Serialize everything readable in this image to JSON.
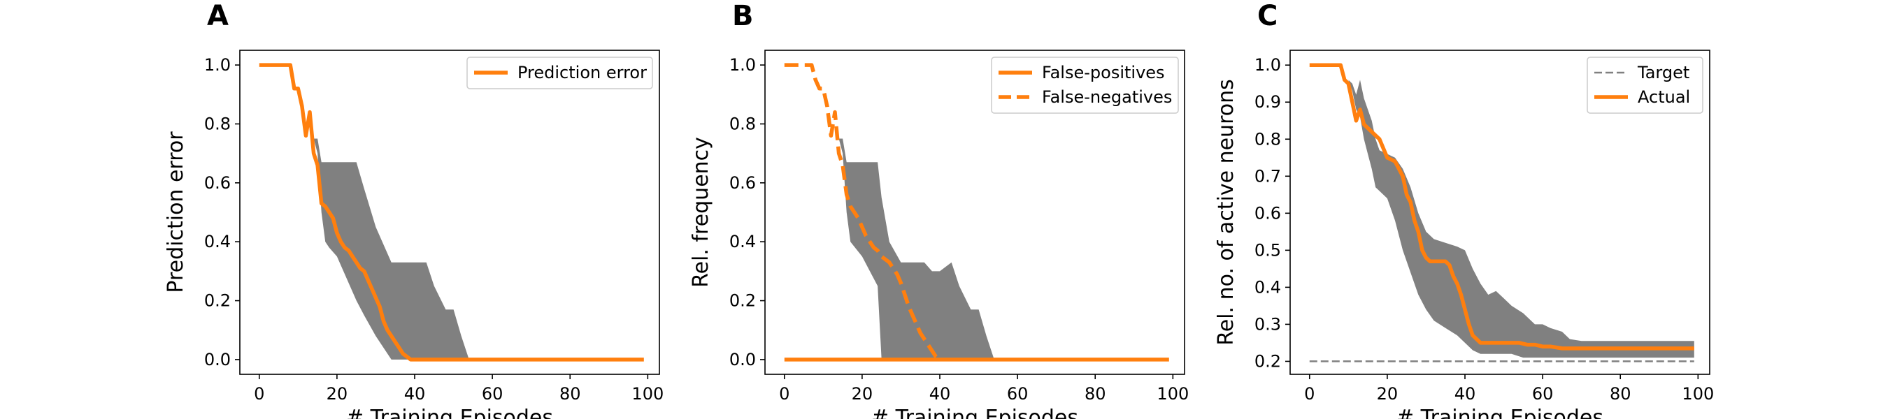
{
  "colors": {
    "orange": "#ff7f0e",
    "band": "#808080",
    "target": "#808080"
  },
  "chart_data": [
    {
      "type": "line",
      "panel_label": "A",
      "xlabel": "# Training Episodes",
      "ylabel": "Prediction error",
      "xlim": [
        -5,
        103
      ],
      "ylim": [
        -0.05,
        1.05
      ],
      "xticks": [
        0,
        20,
        40,
        60,
        80,
        100
      ],
      "yticks": [
        0.0,
        0.2,
        0.4,
        0.6,
        0.8,
        1.0
      ],
      "ytick_labels": [
        "0.0",
        "0.2",
        "0.4",
        "0.6",
        "0.8",
        "1.0"
      ],
      "legend_position": "top-right",
      "band": {
        "x": [
          14,
          15,
          16,
          17,
          18,
          20,
          25,
          27,
          30,
          34,
          35,
          40,
          43,
          45,
          48,
          50,
          52,
          54
        ],
        "upper": [
          0.75,
          0.75,
          0.67,
          0.67,
          0.67,
          0.67,
          0.67,
          0.58,
          0.45,
          0.33,
          0.33,
          0.33,
          0.33,
          0.25,
          0.17,
          0.17,
          0.08,
          0.0
        ],
        "lower": [
          0.75,
          0.7,
          0.5,
          0.4,
          0.38,
          0.35,
          0.2,
          0.15,
          0.08,
          0.0,
          0.0,
          0.0,
          0.0,
          0.0,
          0.0,
          0.0,
          0.0,
          0.0
        ]
      },
      "series": [
        {
          "name": "Prediction error",
          "style": "solid",
          "x": [
            0,
            8,
            9,
            10,
            11,
            12,
            13,
            14,
            15,
            16,
            17,
            18,
            19,
            20,
            21,
            22,
            23,
            24,
            25,
            26,
            27,
            28,
            29,
            30,
            31,
            32,
            33,
            34,
            35,
            36,
            37,
            38,
            39,
            40,
            99
          ],
          "y": [
            1.0,
            1.0,
            0.92,
            0.92,
            0.86,
            0.76,
            0.84,
            0.7,
            0.66,
            0.53,
            0.52,
            0.5,
            0.48,
            0.43,
            0.4,
            0.38,
            0.37,
            0.35,
            0.33,
            0.31,
            0.3,
            0.27,
            0.24,
            0.21,
            0.18,
            0.13,
            0.1,
            0.08,
            0.06,
            0.04,
            0.02,
            0.01,
            0.0,
            0.0,
            0.0
          ]
        }
      ]
    },
    {
      "type": "line",
      "panel_label": "B",
      "xlabel": "# Training Episodes",
      "ylabel": "Rel. frequency",
      "xlim": [
        -5,
        103
      ],
      "ylim": [
        -0.05,
        1.05
      ],
      "xticks": [
        0,
        20,
        40,
        60,
        80,
        100
      ],
      "yticks": [
        0.0,
        0.2,
        0.4,
        0.6,
        0.8,
        1.0
      ],
      "ytick_labels": [
        "0.0",
        "0.2",
        "0.4",
        "0.6",
        "0.8",
        "1.0"
      ],
      "legend_position": "top-right",
      "band": {
        "x": [
          14,
          15,
          16,
          17,
          20,
          24,
          25,
          27,
          30,
          34,
          36,
          38,
          40,
          43,
          45,
          48,
          50,
          52,
          54
        ],
        "upper": [
          0.75,
          0.75,
          0.67,
          0.67,
          0.67,
          0.67,
          0.55,
          0.4,
          0.33,
          0.33,
          0.33,
          0.3,
          0.3,
          0.33,
          0.25,
          0.17,
          0.17,
          0.08,
          0.0
        ],
        "lower": [
          0.75,
          0.7,
          0.5,
          0.4,
          0.35,
          0.25,
          0.0,
          0.0,
          0.0,
          0.0,
          0.0,
          0.0,
          0.0,
          0.0,
          0.0,
          0.0,
          0.0,
          0.0,
          0.0
        ]
      },
      "series": [
        {
          "name": "False-positives",
          "style": "solid",
          "x": [
            0,
            99
          ],
          "y": [
            0.0,
            0.0
          ]
        },
        {
          "name": "False-negatives",
          "style": "dashed",
          "x": [
            0,
            7,
            8,
            9,
            10,
            11,
            12,
            13,
            14,
            15,
            16,
            17,
            18,
            19,
            20,
            21,
            22,
            23,
            24,
            25,
            26,
            27,
            28,
            29,
            30,
            31,
            32,
            33,
            34,
            35,
            36,
            37,
            38,
            39,
            40
          ],
          "y": [
            1.0,
            1.0,
            0.95,
            0.92,
            0.92,
            0.86,
            0.76,
            0.84,
            0.7,
            0.66,
            0.56,
            0.52,
            0.5,
            0.48,
            0.45,
            0.42,
            0.4,
            0.38,
            0.37,
            0.35,
            0.34,
            0.33,
            0.31,
            0.29,
            0.26,
            0.22,
            0.18,
            0.15,
            0.12,
            0.09,
            0.07,
            0.05,
            0.03,
            0.01,
            0.0
          ]
        }
      ]
    },
    {
      "type": "line",
      "panel_label": "C",
      "xlabel": "# Training Episodes",
      "ylabel": "Rel. no. of active neurons",
      "xlim": [
        -5,
        103
      ],
      "ylim": [
        0.165,
        1.04
      ],
      "xticks": [
        0,
        20,
        40,
        60,
        80,
        100
      ],
      "yticks": [
        0.2,
        0.3,
        0.4,
        0.5,
        0.6,
        0.7,
        0.8,
        0.9,
        1.0
      ],
      "ytick_labels": [
        "0.2",
        "0.3",
        "0.4",
        "0.5",
        "0.6",
        "0.7",
        "0.8",
        "0.9",
        "1.0"
      ],
      "legend_position": "top-right",
      "band": {
        "x": [
          10,
          11,
          12,
          13,
          14,
          15,
          16,
          17,
          18,
          20,
          22,
          24,
          26,
          28,
          30,
          32,
          35,
          38,
          40,
          42,
          44,
          46,
          48,
          50,
          52,
          55,
          58,
          60,
          62,
          65,
          67,
          70,
          75,
          80,
          85,
          90,
          95,
          99
        ],
        "upper": [
          0.96,
          0.95,
          0.92,
          0.96,
          0.91,
          0.88,
          0.85,
          0.8,
          0.77,
          0.76,
          0.75,
          0.72,
          0.67,
          0.6,
          0.55,
          0.53,
          0.52,
          0.51,
          0.5,
          0.45,
          0.41,
          0.38,
          0.39,
          0.37,
          0.35,
          0.33,
          0.3,
          0.3,
          0.29,
          0.28,
          0.26,
          0.255,
          0.255,
          0.255,
          0.255,
          0.255,
          0.255,
          0.255
        ],
        "lower": [
          0.96,
          0.93,
          0.88,
          0.86,
          0.8,
          0.76,
          0.72,
          0.67,
          0.66,
          0.64,
          0.58,
          0.5,
          0.44,
          0.38,
          0.34,
          0.31,
          0.29,
          0.27,
          0.25,
          0.23,
          0.22,
          0.22,
          0.22,
          0.22,
          0.22,
          0.21,
          0.21,
          0.21,
          0.21,
          0.21,
          0.21,
          0.21,
          0.21,
          0.21,
          0.21,
          0.21,
          0.21,
          0.21
        ]
      },
      "series": [
        {
          "name": "Target",
          "style": "dashed-thin",
          "x": [
            0,
            99
          ],
          "y": [
            0.2,
            0.2
          ]
        },
        {
          "name": "Actual",
          "style": "solid",
          "x": [
            0,
            8,
            9,
            10,
            11,
            12,
            13,
            14,
            15,
            16,
            17,
            18,
            20,
            22,
            24,
            25,
            26,
            27,
            28,
            29,
            30,
            31,
            32,
            33,
            34,
            35,
            36,
            37,
            38,
            39,
            40,
            41,
            42,
            43,
            44,
            45,
            48,
            50,
            52,
            54,
            56,
            58,
            60,
            62,
            65,
            67,
            70,
            80,
            90,
            99
          ],
          "y": [
            1.0,
            1.0,
            0.96,
            0.95,
            0.9,
            0.85,
            0.88,
            0.84,
            0.83,
            0.82,
            0.81,
            0.8,
            0.75,
            0.74,
            0.7,
            0.65,
            0.63,
            0.58,
            0.55,
            0.5,
            0.48,
            0.47,
            0.47,
            0.47,
            0.47,
            0.47,
            0.46,
            0.43,
            0.41,
            0.38,
            0.34,
            0.3,
            0.27,
            0.26,
            0.25,
            0.25,
            0.25,
            0.25,
            0.25,
            0.25,
            0.245,
            0.245,
            0.24,
            0.24,
            0.235,
            0.235,
            0.235,
            0.235,
            0.235,
            0.235
          ]
        }
      ]
    }
  ]
}
